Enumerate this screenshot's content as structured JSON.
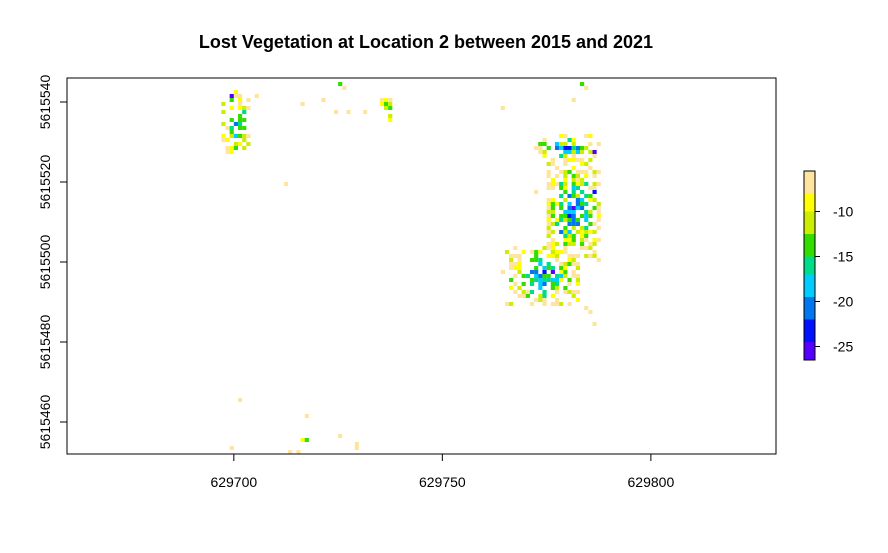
{
  "chart_data": {
    "type": "heatmap",
    "title": "Lost Vegetation at Location 2 between 2015 and 2021",
    "xlabel": "",
    "ylabel": "",
    "xlim": [
      629660,
      629830
    ],
    "ylim": [
      5615452,
      5615546
    ],
    "x_ticks": [
      629700,
      629750,
      629800
    ],
    "x_tick_labels": [
      "629700",
      "629750",
      "629800"
    ],
    "y_ticks": [
      5615460,
      5615480,
      5615500,
      5615520,
      5615540
    ],
    "y_tick_labels": [
      "5615460",
      "5615480",
      "5615500",
      "5615520",
      "5615540"
    ],
    "cell_size": 1,
    "colorbar": {
      "ticks": [
        -25,
        -20,
        -15,
        -10
      ],
      "tick_labels": [
        "-25",
        "-20",
        "-15",
        "-10"
      ],
      "range": [
        -26.5,
        -5.5
      ],
      "bins": [
        {
          "from": -26.5,
          "to": -24.5,
          "color": "#5500ff"
        },
        {
          "from": -24.5,
          "to": -22.0,
          "color": "#0011ff"
        },
        {
          "from": -22.0,
          "to": -19.5,
          "color": "#0077ee"
        },
        {
          "from": -19.5,
          "to": -17.0,
          "color": "#00ccff"
        },
        {
          "from": -17.0,
          "to": -15.0,
          "color": "#00dd88"
        },
        {
          "from": -15.0,
          "to": -12.5,
          "color": "#33dd00"
        },
        {
          "from": -12.5,
          "to": -10.0,
          "color": "#ccee00"
        },
        {
          "from": -10.0,
          "to": -8.0,
          "color": "#ffff00"
        },
        {
          "from": -8.0,
          "to": -5.5,
          "color": "#ffe4a0"
        }
      ]
    },
    "clusters": [
      {
        "x0": 629697,
        "x1": 629703,
        "y0": 5615527,
        "y1": 5615542,
        "density": 0.55,
        "minValue": -25,
        "maxValue": -7
      },
      {
        "x0": 629735,
        "x1": 629738,
        "y0": 5615535,
        "y1": 5615541,
        "density": 0.7,
        "minValue": -18,
        "maxValue": -7
      },
      {
        "x0": 629772,
        "x1": 629787,
        "y0": 5615525,
        "y1": 5615531,
        "density": 0.6,
        "minValue": -26,
        "maxValue": -6
      },
      {
        "x0": 629775,
        "x1": 629787,
        "y0": 5615500,
        "y1": 5615525,
        "density": 0.75,
        "minValue": -26,
        "maxValue": -6
      },
      {
        "x0": 629765,
        "x1": 629782,
        "y0": 5615489,
        "y1": 5615503,
        "density": 0.7,
        "minValue": -25,
        "maxValue": -6
      }
    ],
    "points": [
      {
        "x": 629699,
        "y": 5615541,
        "value": -25
      },
      {
        "x": 629703,
        "y": 5615540,
        "value": -7
      },
      {
        "x": 629705,
        "y": 5615541,
        "value": -6
      },
      {
        "x": 629716,
        "y": 5615539,
        "value": -8
      },
      {
        "x": 629721,
        "y": 5615540,
        "value": -7
      },
      {
        "x": 629725,
        "y": 5615544,
        "value": -13
      },
      {
        "x": 629726,
        "y": 5615543,
        "value": -7
      },
      {
        "x": 629724,
        "y": 5615537,
        "value": -6
      },
      {
        "x": 629727,
        "y": 5615537,
        "value": -6
      },
      {
        "x": 629731,
        "y": 5615537,
        "value": -6
      },
      {
        "x": 629764,
        "y": 5615538,
        "value": -8
      },
      {
        "x": 629783,
        "y": 5615544,
        "value": -14
      },
      {
        "x": 629784,
        "y": 5615543,
        "value": -7
      },
      {
        "x": 629781,
        "y": 5615540,
        "value": -6
      },
      {
        "x": 629773,
        "y": 5615529,
        "value": -14
      },
      {
        "x": 629786,
        "y": 5615527,
        "value": -26
      },
      {
        "x": 629785,
        "y": 5615529,
        "value": -7
      },
      {
        "x": 629772,
        "y": 5615517,
        "value": -6
      },
      {
        "x": 629712,
        "y": 5615519,
        "value": -6
      },
      {
        "x": 629786,
        "y": 5615517,
        "value": -24
      },
      {
        "x": 629778,
        "y": 5615507,
        "value": -21
      },
      {
        "x": 629764,
        "y": 5615497,
        "value": -6
      },
      {
        "x": 629776,
        "y": 5615497,
        "value": -25
      },
      {
        "x": 629784,
        "y": 5615488,
        "value": -7
      },
      {
        "x": 629785,
        "y": 5615487,
        "value": -6
      },
      {
        "x": 629786,
        "y": 5615484,
        "value": -6
      },
      {
        "x": 629701,
        "y": 5615465,
        "value": -6
      },
      {
        "x": 629717,
        "y": 5615461,
        "value": -6
      },
      {
        "x": 629725,
        "y": 5615456,
        "value": -7
      },
      {
        "x": 629716,
        "y": 5615455,
        "value": -9
      },
      {
        "x": 629717,
        "y": 5615455,
        "value": -14
      },
      {
        "x": 629729,
        "y": 5615454,
        "value": -6
      },
      {
        "x": 629699,
        "y": 5615453,
        "value": -6
      },
      {
        "x": 629713,
        "y": 5615452,
        "value": -8
      },
      {
        "x": 629715,
        "y": 5615452,
        "value": -6
      },
      {
        "x": 629729,
        "y": 5615453,
        "value": -6
      }
    ]
  }
}
